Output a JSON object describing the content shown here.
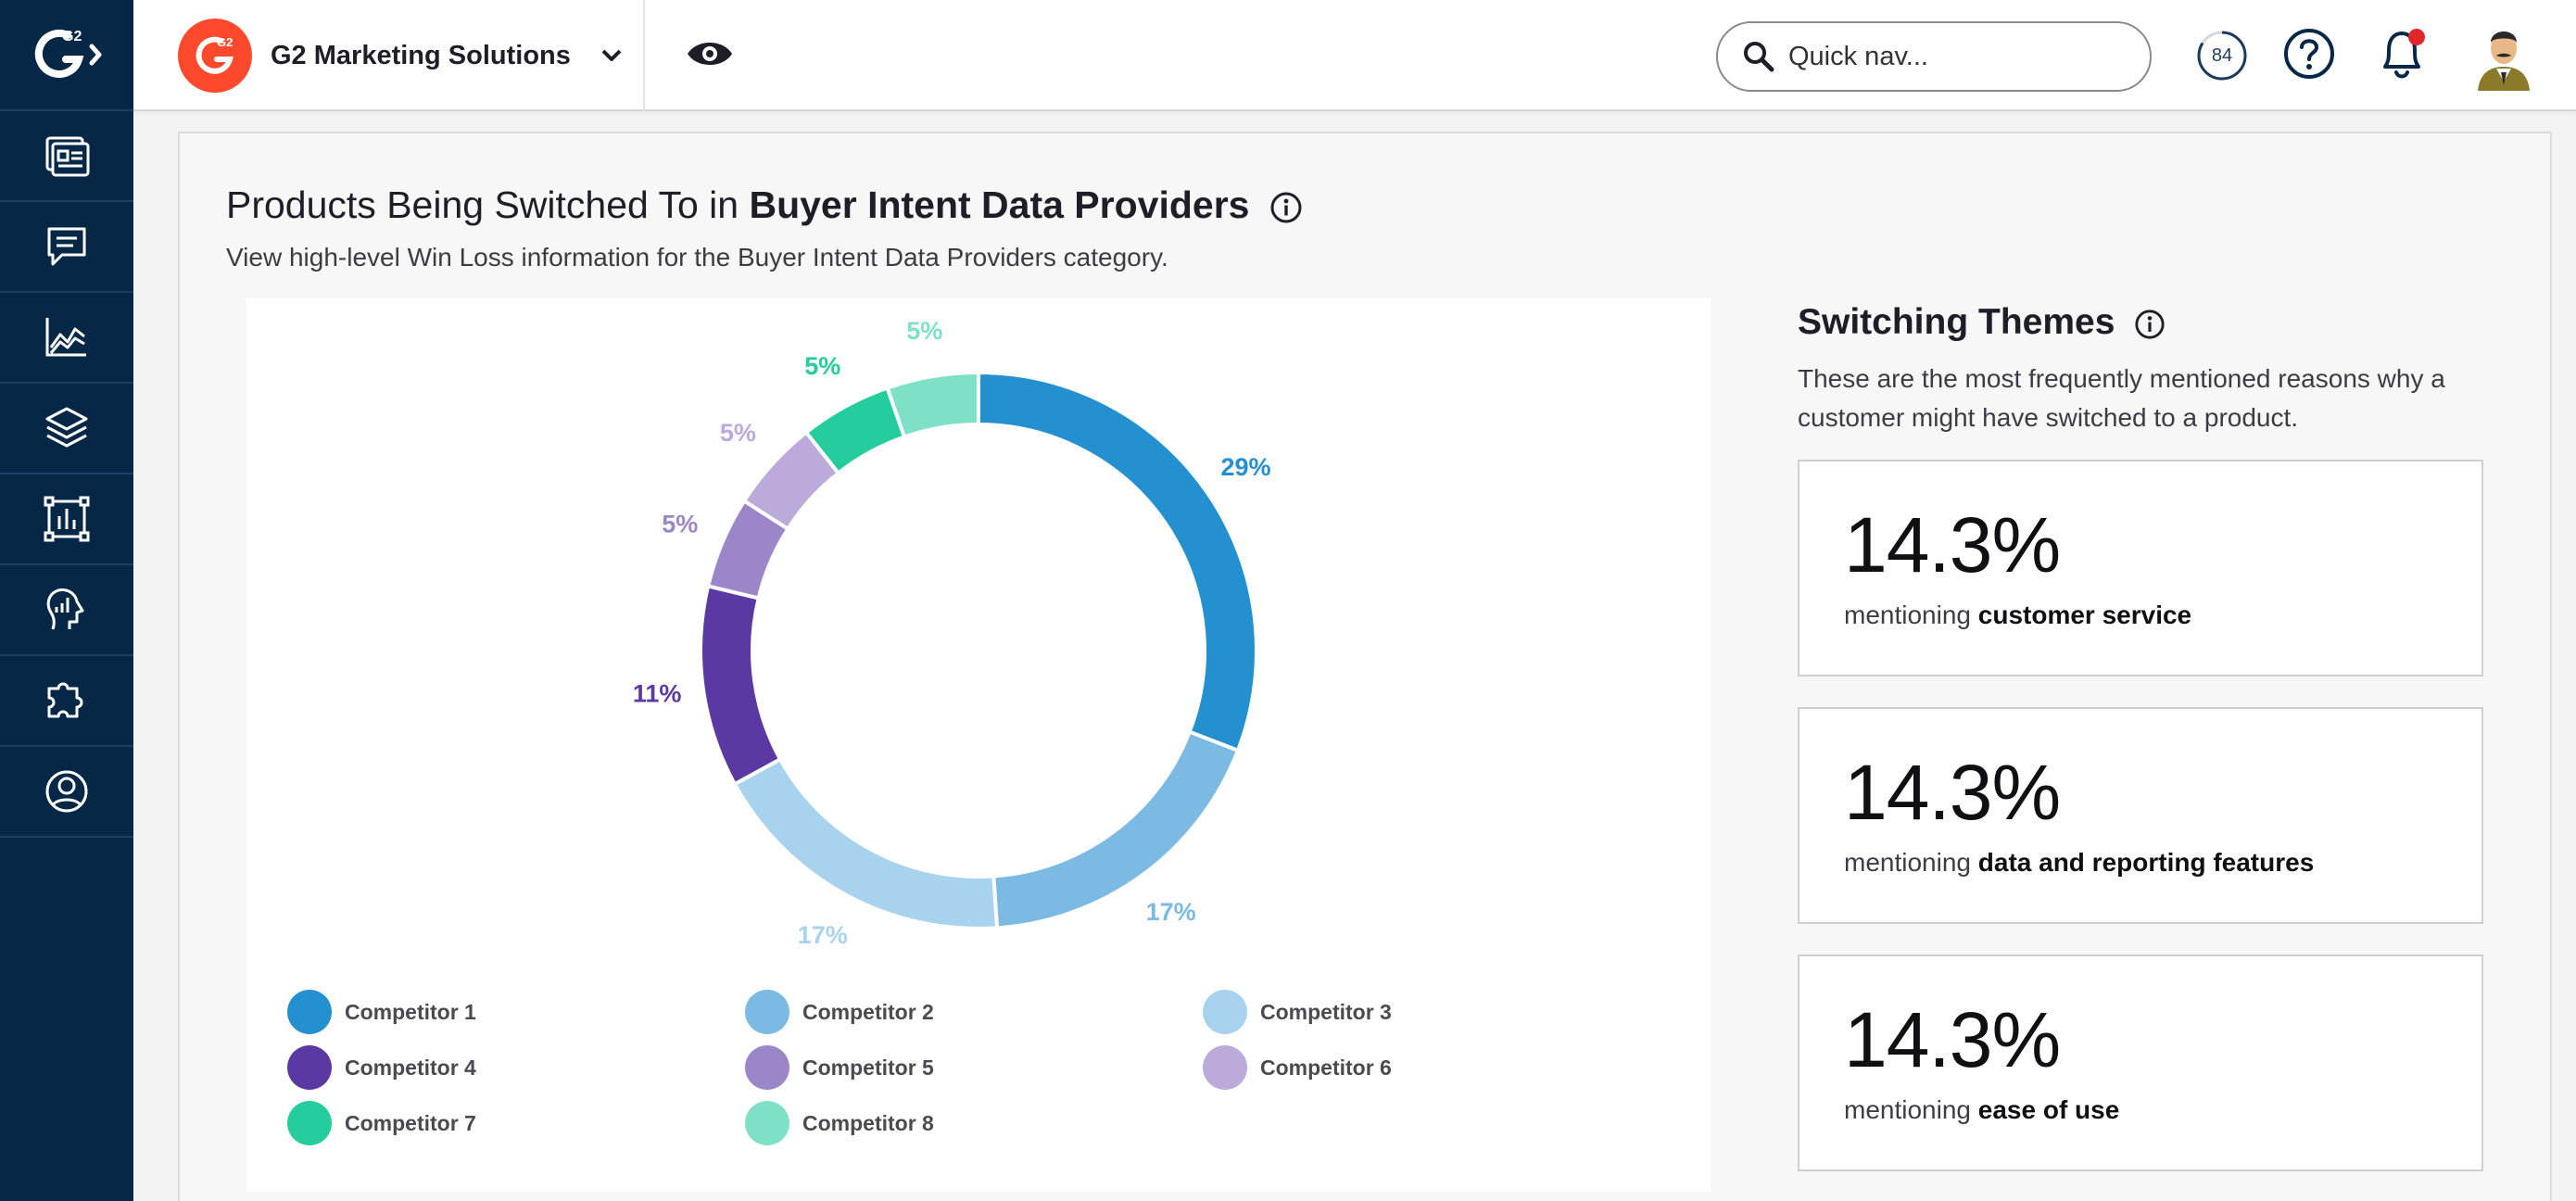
{
  "app": {
    "logo_text": "G2",
    "org_name": "G2 Marketing Solutions",
    "search_placeholder": "Quick nav...",
    "progress_value": "84",
    "icons": {
      "sidebar": [
        "dashboard-icon",
        "reviews-icon",
        "analytics-icon",
        "layers-icon",
        "report-icon",
        "buyer-intent-icon",
        "integrations-icon",
        "account-icon"
      ],
      "topbar": [
        "eye-icon",
        "search-icon",
        "help-icon",
        "bell-icon",
        "avatar"
      ]
    },
    "colors": {
      "sidebar": "#062846",
      "brand": "#ff492c",
      "notification": "#e0282c"
    }
  },
  "page": {
    "title_prefix": "Products Being Switched To in",
    "title_category": "Buyer Intent Data Providers",
    "subtitle": "View high-level Win Loss information for the Buyer Intent Data Providers category."
  },
  "chart_data": {
    "type": "pie",
    "categories": [
      "Competitor 1",
      "Competitor 2",
      "Competitor 3",
      "Competitor 4",
      "Competitor 5",
      "Competitor 6",
      "Competitor 7",
      "Competitor 8"
    ],
    "values": [
      29,
      17,
      17,
      11,
      5,
      5,
      5,
      5
    ],
    "labels": [
      "29%",
      "17%",
      "17%",
      "11%",
      "5%",
      "5%",
      "5%",
      "5%"
    ],
    "colors": [
      "#2490d0",
      "#7bbae2",
      "#a8d3ee",
      "#5b39a2",
      "#9b86c9",
      "#bcaadb",
      "#25cc9e",
      "#7fe0c8"
    ],
    "legend_placement": "bottom"
  },
  "themes": {
    "title": "Switching Themes",
    "description": "These are the most frequently mentioned reasons why a customer might have switched to a product.",
    "items": [
      {
        "percent": "14.3%",
        "prefix": "mentioning",
        "topic": "customer service"
      },
      {
        "percent": "14.3%",
        "prefix": "mentioning",
        "topic": "data and reporting features"
      },
      {
        "percent": "14.3%",
        "prefix": "mentioning",
        "topic": "ease of use"
      }
    ]
  }
}
